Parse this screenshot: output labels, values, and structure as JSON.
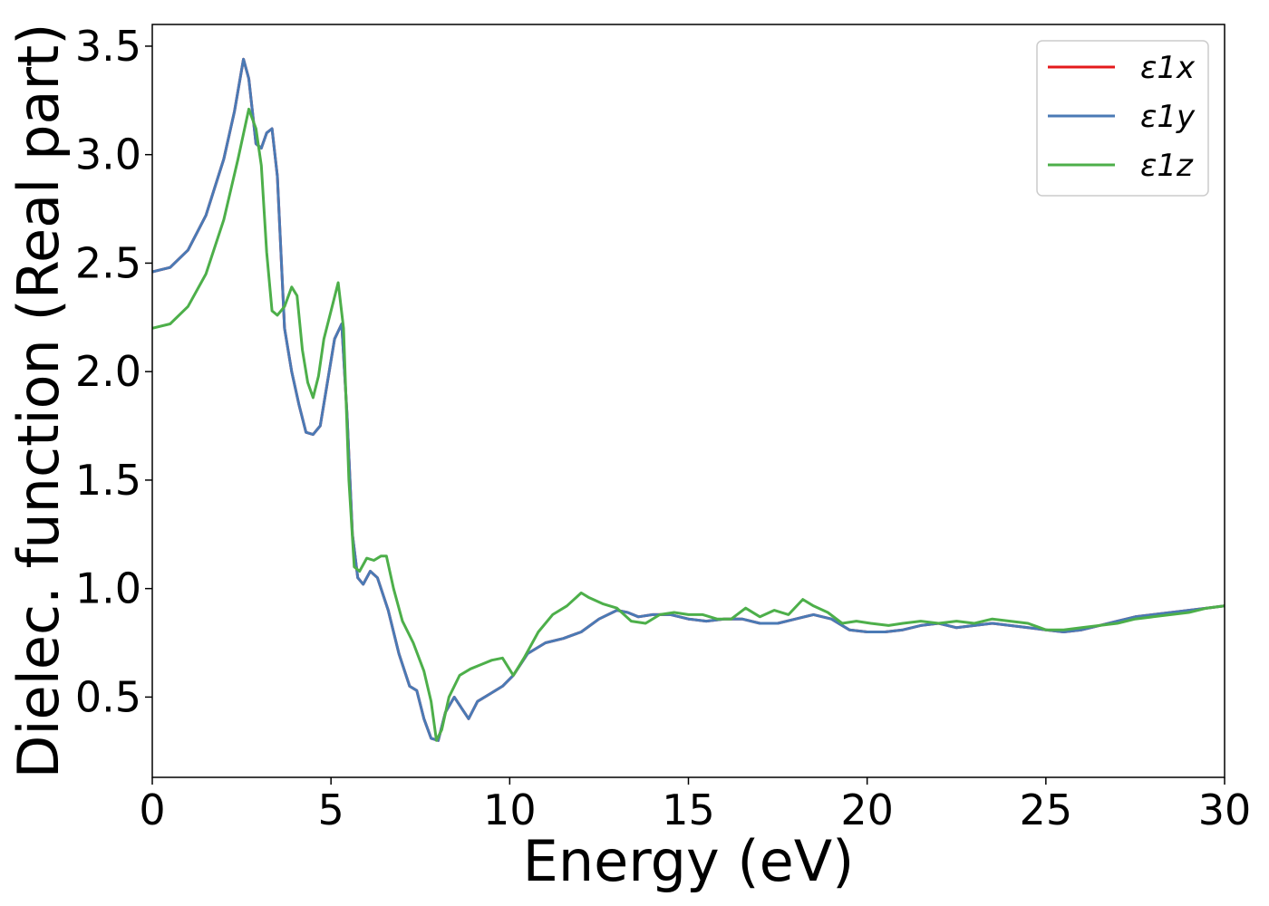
{
  "chart_data": {
    "type": "line",
    "xlabel": "Energy (eV)",
    "ylabel": "Dielec. function (Real part)",
    "xlim": [
      0,
      30
    ],
    "ylim": [
      0.13,
      3.6
    ],
    "xticks": [
      0,
      5,
      10,
      15,
      20,
      25,
      30
    ],
    "xtick_labels": [
      "0",
      "5",
      "10",
      "15",
      "20",
      "25",
      "30"
    ],
    "yticks": [
      0.5,
      1.0,
      1.5,
      2.0,
      2.5,
      3.0,
      3.5
    ],
    "ytick_labels": [
      "0.5",
      "1.0",
      "1.5",
      "2.0",
      "2.5",
      "3.0",
      "3.5"
    ],
    "grid": false,
    "legend_position": "top-right",
    "series": [
      {
        "name": "ε1x",
        "color": "#e41a1c",
        "x": [
          0,
          0.5,
          1,
          1.5,
          2,
          2.3,
          2.55,
          2.7,
          2.9,
          3.05,
          3.2,
          3.35,
          3.5,
          3.7,
          3.9,
          4.1,
          4.3,
          4.5,
          4.7,
          4.9,
          5.1,
          5.3,
          5.45,
          5.6,
          5.75,
          5.9,
          6.1,
          6.3,
          6.6,
          6.9,
          7.2,
          7.4,
          7.6,
          7.8,
          8.0,
          8.2,
          8.45,
          8.65,
          8.85,
          9.1,
          9.5,
          9.8,
          10.1,
          10.5,
          11.0,
          11.5,
          12.0,
          12.5,
          13.0,
          13.3,
          13.6,
          14.0,
          14.5,
          15.0,
          15.5,
          16.0,
          16.5,
          17.0,
          17.5,
          18.0,
          18.5,
          19.0,
          19.5,
          20.0,
          20.5,
          21.0,
          21.5,
          22.0,
          22.5,
          23.0,
          23.5,
          24.0,
          24.5,
          25.0,
          25.5,
          26.0,
          26.5,
          27.0,
          27.5,
          28.0,
          28.5,
          29.0,
          29.5,
          30.0
        ],
        "y": [
          2.46,
          2.48,
          2.56,
          2.72,
          2.98,
          3.2,
          3.44,
          3.35,
          3.05,
          3.03,
          3.1,
          3.12,
          2.9,
          2.2,
          2.0,
          1.85,
          1.72,
          1.71,
          1.75,
          1.95,
          2.15,
          2.22,
          1.8,
          1.25,
          1.05,
          1.02,
          1.08,
          1.05,
          0.9,
          0.7,
          0.55,
          0.53,
          0.4,
          0.31,
          0.3,
          0.43,
          0.5,
          0.45,
          0.4,
          0.48,
          0.52,
          0.55,
          0.6,
          0.7,
          0.75,
          0.77,
          0.8,
          0.86,
          0.9,
          0.89,
          0.87,
          0.88,
          0.88,
          0.86,
          0.85,
          0.86,
          0.86,
          0.84,
          0.84,
          0.86,
          0.88,
          0.86,
          0.81,
          0.8,
          0.8,
          0.81,
          0.83,
          0.84,
          0.82,
          0.83,
          0.84,
          0.83,
          0.82,
          0.81,
          0.8,
          0.81,
          0.83,
          0.85,
          0.87,
          0.88,
          0.89,
          0.9,
          0.91,
          0.92
        ]
      },
      {
        "name": "ε1y",
        "color": "#4a7ab5",
        "x": [
          0,
          0.5,
          1,
          1.5,
          2,
          2.3,
          2.55,
          2.7,
          2.9,
          3.05,
          3.2,
          3.35,
          3.5,
          3.7,
          3.9,
          4.1,
          4.3,
          4.5,
          4.7,
          4.9,
          5.1,
          5.3,
          5.45,
          5.6,
          5.75,
          5.9,
          6.1,
          6.3,
          6.6,
          6.9,
          7.2,
          7.4,
          7.6,
          7.8,
          8.0,
          8.2,
          8.45,
          8.65,
          8.85,
          9.1,
          9.5,
          9.8,
          10.1,
          10.5,
          11.0,
          11.5,
          12.0,
          12.5,
          13.0,
          13.3,
          13.6,
          14.0,
          14.5,
          15.0,
          15.5,
          16.0,
          16.5,
          17.0,
          17.5,
          18.0,
          18.5,
          19.0,
          19.5,
          20.0,
          20.5,
          21.0,
          21.5,
          22.0,
          22.5,
          23.0,
          23.5,
          24.0,
          24.5,
          25.0,
          25.5,
          26.0,
          26.5,
          27.0,
          27.5,
          28.0,
          28.5,
          29.0,
          29.5,
          30.0
        ],
        "y": [
          2.46,
          2.48,
          2.56,
          2.72,
          2.98,
          3.2,
          3.44,
          3.35,
          3.05,
          3.03,
          3.1,
          3.12,
          2.9,
          2.2,
          2.0,
          1.85,
          1.72,
          1.71,
          1.75,
          1.95,
          2.15,
          2.22,
          1.8,
          1.25,
          1.05,
          1.02,
          1.08,
          1.05,
          0.9,
          0.7,
          0.55,
          0.53,
          0.4,
          0.31,
          0.3,
          0.43,
          0.5,
          0.45,
          0.4,
          0.48,
          0.52,
          0.55,
          0.6,
          0.7,
          0.75,
          0.77,
          0.8,
          0.86,
          0.9,
          0.89,
          0.87,
          0.88,
          0.88,
          0.86,
          0.85,
          0.86,
          0.86,
          0.84,
          0.84,
          0.86,
          0.88,
          0.86,
          0.81,
          0.8,
          0.8,
          0.81,
          0.83,
          0.84,
          0.82,
          0.83,
          0.84,
          0.83,
          0.82,
          0.81,
          0.8,
          0.81,
          0.83,
          0.85,
          0.87,
          0.88,
          0.89,
          0.9,
          0.91,
          0.92
        ]
      },
      {
        "name": "ε1z",
        "color": "#4daf4a",
        "x": [
          0,
          0.5,
          1,
          1.5,
          2,
          2.4,
          2.7,
          2.9,
          3.05,
          3.2,
          3.35,
          3.5,
          3.7,
          3.9,
          4.05,
          4.2,
          4.35,
          4.5,
          4.65,
          4.8,
          5.0,
          5.2,
          5.35,
          5.5,
          5.65,
          5.8,
          6.0,
          6.2,
          6.4,
          6.55,
          6.75,
          7.0,
          7.3,
          7.6,
          7.8,
          7.95,
          8.1,
          8.3,
          8.6,
          8.9,
          9.2,
          9.5,
          9.8,
          10.1,
          10.4,
          10.8,
          11.2,
          11.6,
          12.0,
          12.2,
          12.6,
          13.0,
          13.4,
          13.8,
          14.2,
          14.6,
          15.0,
          15.4,
          15.8,
          16.2,
          16.6,
          17.0,
          17.4,
          17.8,
          18.2,
          18.5,
          18.9,
          19.3,
          19.7,
          20.1,
          20.6,
          21.0,
          21.5,
          22.0,
          22.5,
          23.0,
          23.5,
          24.0,
          24.5,
          25.0,
          25.5,
          26.0,
          26.5,
          27.0,
          27.5,
          28.0,
          28.5,
          29.0,
          29.5,
          30.0
        ],
        "y": [
          2.2,
          2.22,
          2.3,
          2.45,
          2.7,
          2.98,
          3.21,
          3.12,
          2.95,
          2.55,
          2.28,
          2.26,
          2.3,
          2.39,
          2.35,
          2.1,
          1.95,
          1.88,
          1.98,
          2.15,
          2.28,
          2.41,
          2.2,
          1.5,
          1.1,
          1.08,
          1.14,
          1.13,
          1.15,
          1.15,
          1.0,
          0.85,
          0.75,
          0.62,
          0.48,
          0.3,
          0.35,
          0.5,
          0.6,
          0.63,
          0.65,
          0.67,
          0.68,
          0.6,
          0.68,
          0.8,
          0.88,
          0.92,
          0.98,
          0.96,
          0.93,
          0.91,
          0.85,
          0.84,
          0.88,
          0.89,
          0.88,
          0.88,
          0.86,
          0.86,
          0.91,
          0.87,
          0.9,
          0.88,
          0.95,
          0.92,
          0.89,
          0.84,
          0.85,
          0.84,
          0.83,
          0.84,
          0.85,
          0.84,
          0.85,
          0.84,
          0.86,
          0.85,
          0.84,
          0.81,
          0.81,
          0.82,
          0.83,
          0.84,
          0.86,
          0.87,
          0.88,
          0.89,
          0.91,
          0.92
        ]
      }
    ]
  }
}
